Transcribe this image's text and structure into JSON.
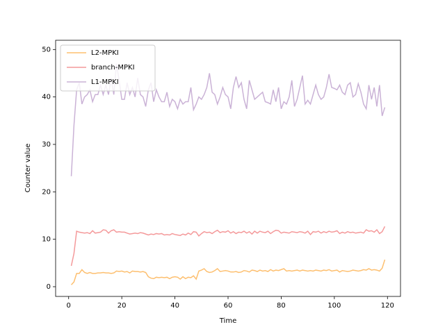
{
  "chart_data": {
    "type": "line",
    "x_label": "Time",
    "y_label": "Counter value",
    "x": [
      1,
      2,
      3,
      4,
      5,
      6,
      7,
      8,
      9,
      10,
      11,
      12,
      13,
      14,
      15,
      16,
      17,
      18,
      19,
      20,
      21,
      22,
      23,
      24,
      25,
      26,
      27,
      28,
      29,
      30,
      31,
      32,
      33,
      34,
      35,
      36,
      37,
      38,
      39,
      40,
      41,
      42,
      43,
      44,
      45,
      46,
      47,
      48,
      49,
      50,
      51,
      52,
      53,
      54,
      55,
      56,
      57,
      58,
      59,
      60,
      61,
      62,
      63,
      64,
      65,
      66,
      67,
      68,
      69,
      70,
      71,
      72,
      73,
      74,
      75,
      76,
      77,
      78,
      79,
      80,
      81,
      82,
      83,
      84,
      85,
      86,
      87,
      88,
      89,
      90,
      91,
      92,
      93,
      94,
      95,
      96,
      97,
      98,
      99,
      100,
      101,
      102,
      103,
      104,
      105,
      106,
      107,
      108,
      109,
      110,
      111,
      112,
      113,
      114,
      115,
      116,
      117,
      118,
      119
    ],
    "series": [
      {
        "name": "L2-MPKI",
        "color": "#fdbf6f",
        "values": [
          0.4,
          1.0,
          2.8,
          2.8,
          3.6,
          3.0,
          2.8,
          3.0,
          2.8,
          2.8,
          2.9,
          2.9,
          3.0,
          2.9,
          2.9,
          2.8,
          2.9,
          3.3,
          3.2,
          3.3,
          3.1,
          3.2,
          2.9,
          3.3,
          3.2,
          3.2,
          3.1,
          3.2,
          3.0,
          2.1,
          1.8,
          1.7,
          2.0,
          1.9,
          2.0,
          1.9,
          2.0,
          1.7,
          2.0,
          2.1,
          2.0,
          1.6,
          2.1,
          1.7,
          2.0,
          1.9,
          2.3,
          1.6,
          3.3,
          3.5,
          3.8,
          3.2,
          3.0,
          3.1,
          3.4,
          3.8,
          3.2,
          3.3,
          3.4,
          3.3,
          3.1,
          3.1,
          3.2,
          3.0,
          3.1,
          3.4,
          3.3,
          3.1,
          3.5,
          3.4,
          3.2,
          3.5,
          3.3,
          3.4,
          3.2,
          3.6,
          3.3,
          3.5,
          3.4,
          3.6,
          3.8,
          3.3,
          3.4,
          3.3,
          3.4,
          3.5,
          3.3,
          3.5,
          3.4,
          3.3,
          3.4,
          3.3,
          3.5,
          3.4,
          3.3,
          3.5,
          3.4,
          3.6,
          3.3,
          3.4,
          3.5,
          3.1,
          3.4,
          3.3,
          3.2,
          3.3,
          3.5,
          3.4,
          3.3,
          3.4,
          3.6,
          3.5,
          3.8,
          3.5,
          3.6,
          3.5,
          3.3,
          3.9,
          5.7
        ]
      },
      {
        "name": "branch-MPKI",
        "color": "#f4999a",
        "values": [
          4.4,
          7.0,
          11.7,
          11.5,
          11.4,
          11.3,
          11.4,
          11.2,
          11.8,
          11.3,
          11.4,
          11.5,
          12.0,
          11.9,
          11.3,
          11.8,
          12.0,
          11.5,
          11.6,
          11.5,
          11.5,
          11.3,
          11.1,
          11.2,
          11.3,
          11.2,
          11.4,
          11.3,
          11.1,
          10.9,
          11.1,
          11.0,
          11.2,
          11.1,
          11.2,
          10.9,
          11.0,
          10.9,
          11.2,
          11.0,
          10.9,
          10.8,
          11.1,
          10.9,
          11.3,
          11.0,
          11.6,
          11.5,
          10.7,
          11.2,
          11.6,
          11.4,
          11.5,
          11.2,
          11.6,
          11.9,
          11.4,
          11.6,
          11.5,
          11.8,
          11.3,
          11.6,
          11.2,
          11.5,
          11.4,
          11.7,
          11.3,
          11.6,
          11.1,
          11.7,
          11.3,
          11.7,
          11.5,
          11.4,
          11.7,
          11.2,
          11.6,
          11.9,
          11.8,
          11.3,
          11.5,
          11.4,
          11.3,
          11.6,
          11.5,
          11.4,
          11.6,
          11.5,
          11.3,
          11.7,
          11.0,
          11.6,
          11.5,
          11.7,
          11.3,
          11.6,
          11.4,
          11.7,
          11.5,
          11.6,
          11.8,
          11.2,
          11.5,
          11.3,
          11.6,
          11.4,
          11.5,
          11.3,
          11.4,
          11.5,
          11.3,
          12.0,
          11.7,
          11.8,
          11.5,
          12.0,
          11.2,
          11.6,
          12.7
        ]
      },
      {
        "name": "L1-MPKI",
        "color": "#cab2d6",
        "values": [
          23.3,
          34.0,
          41.5,
          43.0,
          38.5,
          40.0,
          40.5,
          41.5,
          39.0,
          40.5,
          40.5,
          42.5,
          40.5,
          42.5,
          40.5,
          44.0,
          40.5,
          47.0,
          43.5,
          39.5,
          39.5,
          43.0,
          40.5,
          42.0,
          40.0,
          44.0,
          40.5,
          40.0,
          38.0,
          41.5,
          43.0,
          39.0,
          41.5,
          40.0,
          39.0,
          39.0,
          41.0,
          38.0,
          39.5,
          39.0,
          37.5,
          39.5,
          38.5,
          39.0,
          39.0,
          42.0,
          37.3,
          38.5,
          40.0,
          39.5,
          40.5,
          42.0,
          45.0,
          41.0,
          40.5,
          38.5,
          40.0,
          42.0,
          40.5,
          40.0,
          37.5,
          42.0,
          44.3,
          42.0,
          43.0,
          39.5,
          37.5,
          43.5,
          41.5,
          39.5,
          40.0,
          40.5,
          41.0,
          39.0,
          38.8,
          38.5,
          41.5,
          39.0,
          42.0,
          37.5,
          39.0,
          38.5,
          40.0,
          43.5,
          38.0,
          39.5,
          42.0,
          44.5,
          38.5,
          39.3,
          38.5,
          40.5,
          42.5,
          40.5,
          39.5,
          40.0,
          42.0,
          44.8,
          42.0,
          41.8,
          41.5,
          42.5,
          41.0,
          40.5,
          42.5,
          43.0,
          40.0,
          40.5,
          42.8,
          41.0,
          38.5,
          37.5,
          42.5,
          39.5,
          42.0,
          38.0,
          42.5,
          36.0,
          37.8
        ]
      }
    ],
    "xlim": [
      -4.9,
      124.9
    ],
    "xticks": [
      0,
      20,
      40,
      60,
      80,
      100,
      120
    ],
    "ylim": [
      -2.05,
      51.95
    ],
    "yticks": [
      0,
      10,
      20,
      30,
      40,
      50
    ],
    "legend": "upper left"
  }
}
